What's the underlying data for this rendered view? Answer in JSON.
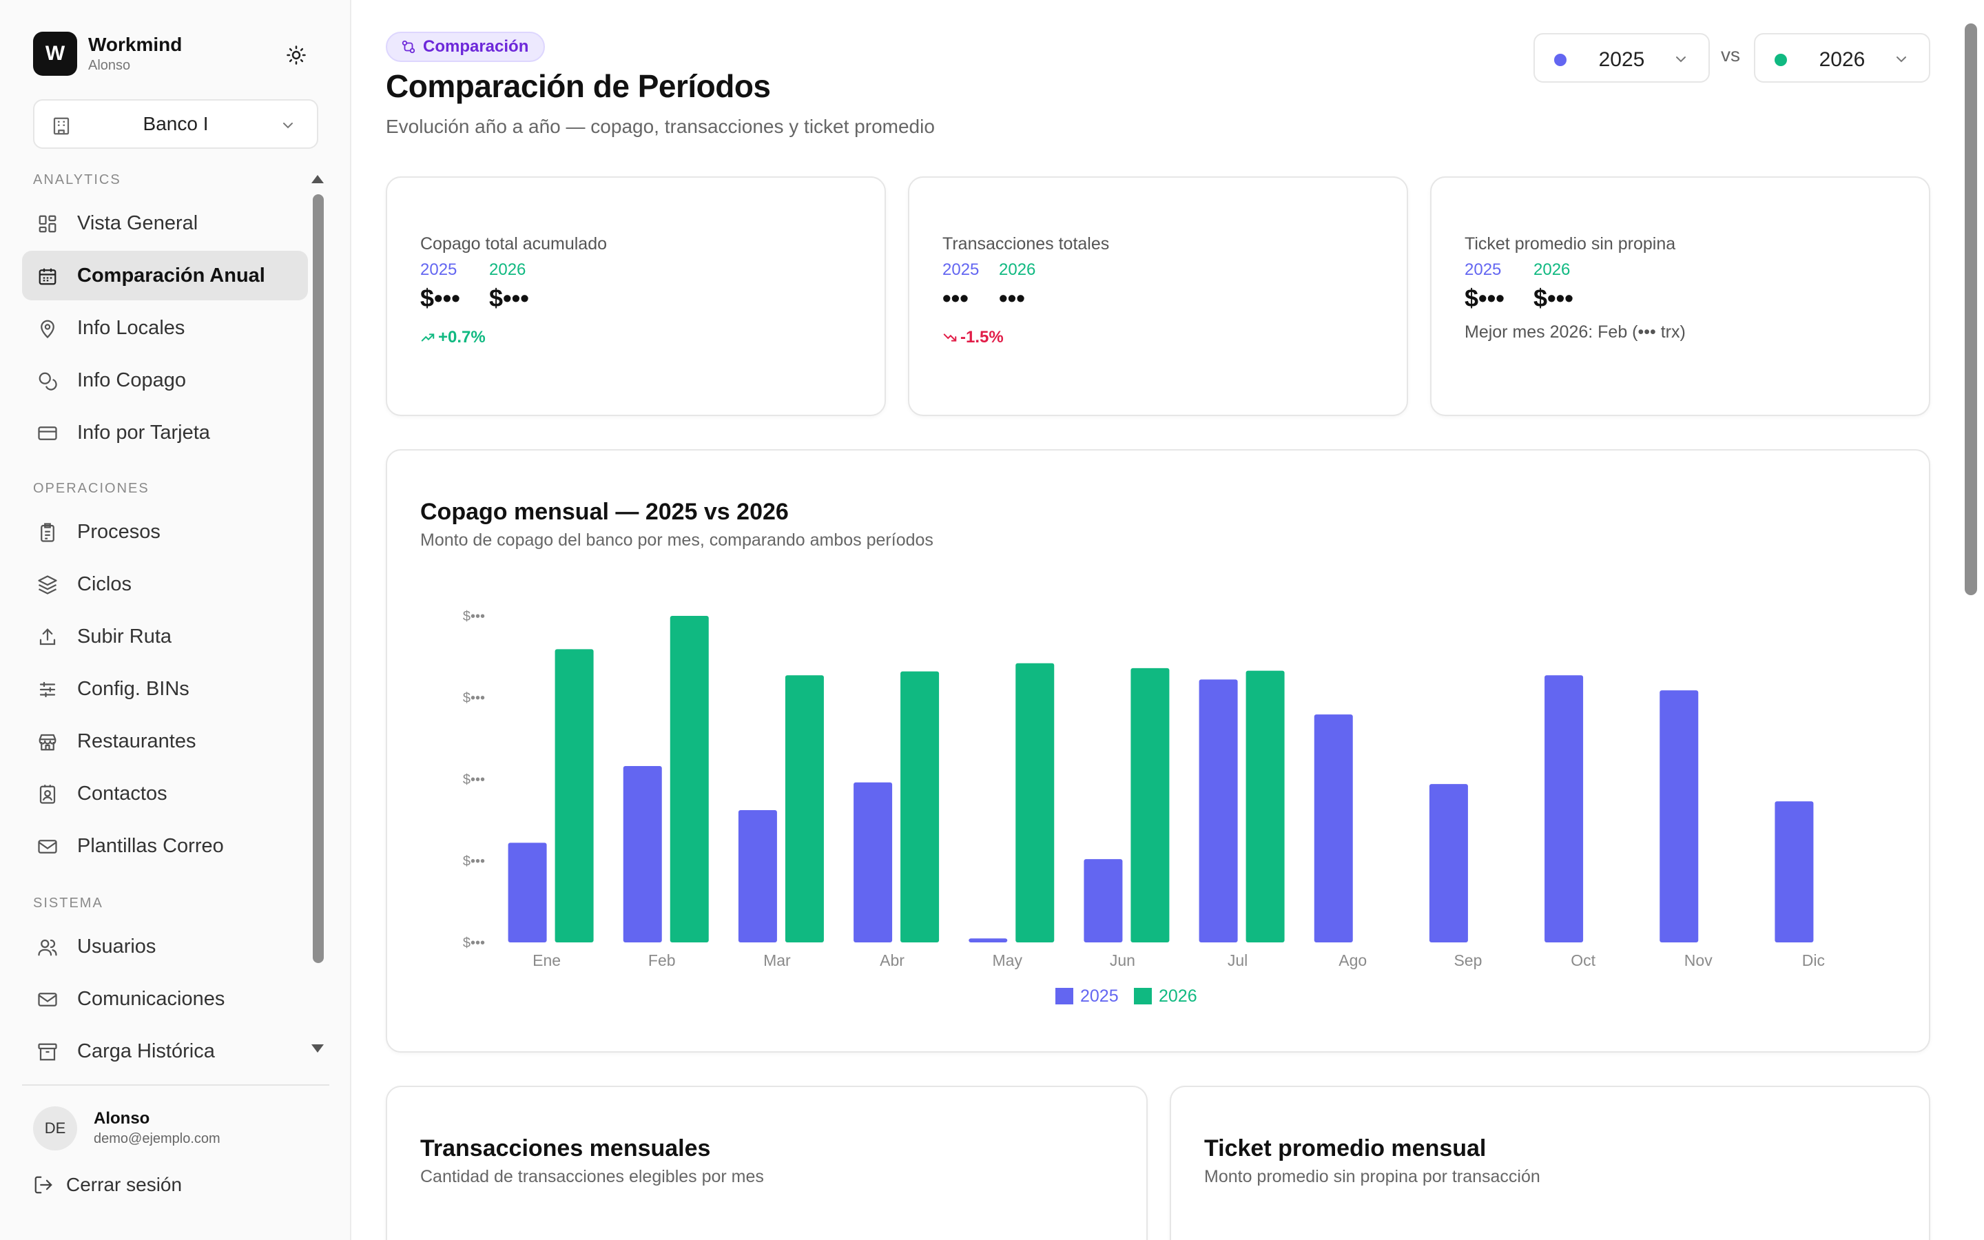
{
  "sidebar": {
    "brand_initial": "W",
    "brand_name": "Workmind",
    "brand_user": "Alonso",
    "bank_selector": "Banco I",
    "sections": [
      {
        "label": "ANALYTICS"
      },
      {
        "label": "OPERACIONES"
      },
      {
        "label": "SISTEMA"
      }
    ],
    "items": [
      {
        "label": "Vista General",
        "icon": "dashboard-icon"
      },
      {
        "label": "Comparación Anual",
        "icon": "calendar-icon",
        "active": true
      },
      {
        "label": "Info Locales",
        "icon": "map-pin-icon"
      },
      {
        "label": "Info Copago",
        "icon": "coins-icon"
      },
      {
        "label": "Info por Tarjeta",
        "icon": "credit-card-icon"
      },
      {
        "label": "Procesos",
        "icon": "clipboard-list-icon"
      },
      {
        "label": "Ciclos",
        "icon": "layers-icon"
      },
      {
        "label": "Subir Ruta",
        "icon": "upload-icon"
      },
      {
        "label": "Config. BINs",
        "icon": "sliders-icon"
      },
      {
        "label": "Restaurantes",
        "icon": "store-icon"
      },
      {
        "label": "Contactos",
        "icon": "contact-icon"
      },
      {
        "label": "Plantillas Correo",
        "icon": "mail-icon"
      },
      {
        "label": "Usuarios",
        "icon": "users-icon"
      },
      {
        "label": "Comunicaciones",
        "icon": "mail-icon"
      },
      {
        "label": "Carga Histórica",
        "icon": "archive-icon"
      }
    ],
    "user": {
      "initials": "DE",
      "name": "Alonso",
      "email": "demo@ejemplo.com"
    },
    "logout_label": "Cerrar sesión"
  },
  "header": {
    "badge": "Comparación",
    "title": "Comparación de Períodos",
    "subtitle": "Evolución año a año — copago, transacciones y ticket promedio",
    "year_a": "2025",
    "year_b": "2026",
    "vs": "vs"
  },
  "colors": {
    "year_a": "#6366f1",
    "year_b": "#10b981",
    "positive": "#10b981",
    "negative": "#e11d48"
  },
  "kpis": [
    {
      "title": "Copago total acumulado",
      "year_a": "2025",
      "year_b": "2026",
      "value_a": "$•••",
      "value_b": "$•••",
      "delta": "+0.7%",
      "trend": "up"
    },
    {
      "title": "Transacciones totales",
      "year_a": "2025",
      "year_b": "2026",
      "value_a": "•••",
      "value_b": "•••",
      "delta": "-1.5%",
      "trend": "down"
    },
    {
      "title": "Ticket promedio sin propina",
      "year_a": "2025",
      "year_b": "2026",
      "value_a": "$•••",
      "value_b": "$•••",
      "note": "Mejor mes 2026: Feb (••• trx)"
    }
  ],
  "monthly_chart": {
    "title": "Copago mensual — 2025 vs 2026",
    "subtitle": "Monto de copago del banco por mes, comparando ambos períodos"
  },
  "chart_data": {
    "type": "bar",
    "categories": [
      "Ene",
      "Feb",
      "Mar",
      "Abr",
      "May",
      "Jun",
      "Jul",
      "Ago",
      "Sep",
      "Oct",
      "Nov",
      "Dic"
    ],
    "y_tick_labels": [
      "$•••",
      "$•••",
      "$•••",
      "$•••",
      "$•••"
    ],
    "ylim": [
      0,
      100
    ],
    "series": [
      {
        "name": "2025",
        "color": "#6366f1",
        "values": [
          30.5,
          54,
          40.5,
          49,
          1.2,
          25.5,
          80.5,
          69.8,
          48.5,
          81.8,
          77.2,
          43.2
        ]
      },
      {
        "name": "2026",
        "color": "#10b981",
        "values": [
          89.8,
          100,
          81.8,
          83,
          85.5,
          84,
          83.2,
          null,
          null,
          null,
          null,
          null
        ]
      }
    ],
    "legend": "bottom-center",
    "grid": false
  },
  "bottom_cards": [
    {
      "title": "Transacciones mensuales",
      "subtitle": "Cantidad de transacciones elegibles por mes"
    },
    {
      "title": "Ticket promedio mensual",
      "subtitle": "Monto promedio sin propina por transacción"
    }
  ]
}
